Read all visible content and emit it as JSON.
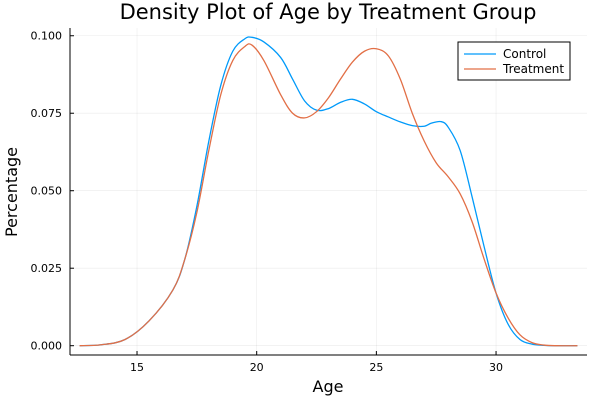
{
  "chart_data": {
    "type": "line",
    "title": "Density Plot of Age by Treatment Group",
    "xlabel": "Age",
    "ylabel": "Percentage",
    "xlim": [
      12.2,
      33.8
    ],
    "ylim": [
      -0.003,
      0.1025
    ],
    "xticks": [
      15,
      20,
      25,
      30
    ],
    "yticks": [
      0.0,
      0.025,
      0.05,
      0.075,
      0.1
    ],
    "ytick_labels": [
      "0.000",
      "0.025",
      "0.050",
      "0.075",
      "0.100"
    ],
    "grid": true,
    "legend_position": "top-right",
    "series": [
      {
        "name": "Control",
        "color": "#009AFA",
        "x": [
          12.6,
          13.5,
          14.5,
          15.5,
          16.5,
          17.0,
          17.5,
          18.0,
          18.5,
          19.0,
          19.5,
          19.8,
          20.3,
          21.0,
          21.5,
          22.0,
          22.5,
          23.0,
          23.5,
          24.0,
          24.5,
          25.0,
          25.5,
          26.0,
          26.5,
          27.0,
          27.3,
          27.7,
          28.0,
          28.5,
          29.0,
          29.5,
          30.0,
          30.5,
          31.0,
          31.5,
          32.0,
          32.5,
          33.4
        ],
        "y": [
          0.0,
          0.0003,
          0.002,
          0.008,
          0.018,
          0.028,
          0.045,
          0.066,
          0.084,
          0.095,
          0.099,
          0.0995,
          0.098,
          0.093,
          0.086,
          0.079,
          0.076,
          0.0765,
          0.0785,
          0.0795,
          0.078,
          0.0755,
          0.0738,
          0.0722,
          0.071,
          0.0708,
          0.0718,
          0.0723,
          0.0705,
          0.063,
          0.048,
          0.032,
          0.017,
          0.007,
          0.002,
          0.0005,
          0.0001,
          0.0,
          0.0
        ]
      },
      {
        "name": "Treatment",
        "color": "#E26F46",
        "x": [
          12.6,
          13.5,
          14.5,
          15.5,
          16.5,
          17.0,
          17.5,
          18.0,
          18.5,
          19.0,
          19.5,
          19.8,
          20.3,
          21.0,
          21.5,
          22.0,
          22.5,
          23.0,
          23.5,
          24.0,
          24.5,
          25.0,
          25.5,
          26.0,
          26.5,
          27.0,
          27.5,
          28.0,
          28.5,
          29.0,
          29.5,
          30.0,
          30.5,
          31.0,
          31.5,
          32.0,
          32.5,
          33.4
        ],
        "y": [
          0.0,
          0.0003,
          0.002,
          0.008,
          0.018,
          0.028,
          0.043,
          0.063,
          0.081,
          0.092,
          0.0965,
          0.097,
          0.092,
          0.081,
          0.075,
          0.0735,
          0.0755,
          0.08,
          0.086,
          0.0915,
          0.095,
          0.0958,
          0.0935,
          0.086,
          0.075,
          0.066,
          0.059,
          0.0545,
          0.049,
          0.04,
          0.028,
          0.017,
          0.009,
          0.0035,
          0.001,
          0.0002,
          0.0,
          0.0
        ]
      }
    ]
  }
}
